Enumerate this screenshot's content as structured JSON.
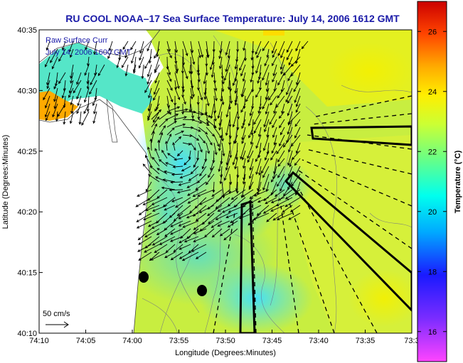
{
  "chart_data": {
    "type": "heatmap",
    "title": "RU COOL   NOAA–17  Sea Surface Temperature:  July 14, 2006 1612 GMT",
    "overlay_text": [
      "Raw Surface Curr",
      "July 14, 2006 1600 GMT"
    ],
    "xlabel": "Longitude (Degrees:Minutes)",
    "ylabel": "Latitude (Degrees:Minutes)",
    "colorbar_label": "Temperature (°C)",
    "xlim": [
      -74.1667,
      -73.5
    ],
    "ylim": [
      40.1667,
      40.5833
    ],
    "x_ticks": [
      {
        "v": -74.1667,
        "label": "74:10"
      },
      {
        "v": -74.0833,
        "label": "74:05"
      },
      {
        "v": -74.0,
        "label": "74:00"
      },
      {
        "v": -73.9167,
        "label": "73:55"
      },
      {
        "v": -73.8333,
        "label": "73:50"
      },
      {
        "v": -73.75,
        "label": "73:45"
      },
      {
        "v": -73.6667,
        "label": "73:40"
      },
      {
        "v": -73.5833,
        "label": "73:35"
      },
      {
        "v": -73.5,
        "label": "73:3"
      }
    ],
    "y_ticks": [
      {
        "v": 40.1667,
        "label": "40:10"
      },
      {
        "v": 40.25,
        "label": "40:15"
      },
      {
        "v": 40.3333,
        "label": "40:20"
      },
      {
        "v": 40.4167,
        "label": "40:25"
      },
      {
        "v": 40.5,
        "label": "40:30"
      },
      {
        "v": 40.5833,
        "label": "40:35"
      }
    ],
    "colorbar": {
      "range": [
        15,
        27
      ],
      "ticks": [
        16,
        18,
        20,
        22,
        24,
        26
      ]
    },
    "scale_arrow": {
      "label": "50 cm/s"
    },
    "grid": false,
    "legend": "colorbar-right"
  }
}
